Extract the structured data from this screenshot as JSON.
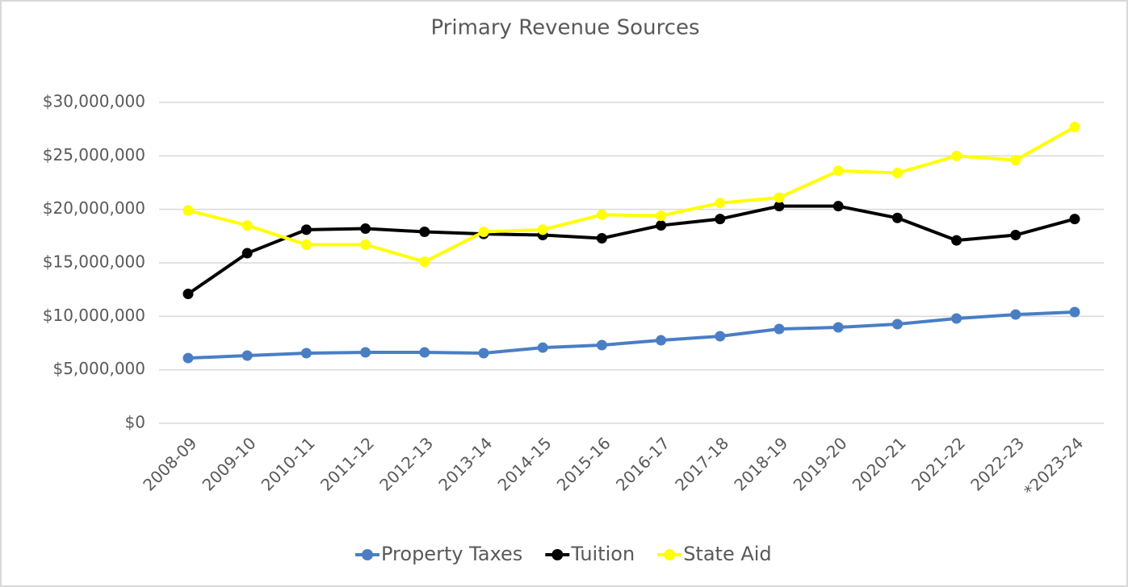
{
  "chart_data": {
    "type": "line",
    "title": "Primary Revenue Sources",
    "categories": [
      "2008-09",
      "2009-10",
      "2010-11",
      "2011-12",
      "2012-13",
      "2013-14",
      "2014-15",
      "2015-16",
      "2016-17",
      "2017-18",
      "2018-19",
      "2019-20",
      "2020-21",
      "2021-22",
      "2022-23",
      "*2023-24"
    ],
    "series": [
      {
        "name": "Property Taxes",
        "color": "#4a7ec4",
        "values": [
          6100000,
          6330000,
          6560000,
          6630000,
          6630000,
          6560000,
          7080000,
          7310000,
          7760000,
          8140000,
          8820000,
          8970000,
          9270000,
          9800000,
          10170000,
          10400000
        ]
      },
      {
        "name": "Tuition",
        "color": "#000000",
        "values": [
          12100000,
          15900000,
          18100000,
          18200000,
          17900000,
          17700000,
          17600000,
          17300000,
          18500000,
          19100000,
          20300000,
          20300000,
          19200000,
          17100000,
          17600000,
          19100000
        ]
      },
      {
        "name": "State Aid",
        "color": "#ffff00",
        "values": [
          19900000,
          18500000,
          16700000,
          16700000,
          15100000,
          17900000,
          18100000,
          19500000,
          19400000,
          20600000,
          21100000,
          23600000,
          23400000,
          25000000,
          24600000,
          27700000
        ]
      }
    ],
    "ylim": [
      0,
      30000000
    ],
    "yticks": [
      {
        "value": 0,
        "label": "$0"
      },
      {
        "value": 5000000,
        "label": "$5,000,000"
      },
      {
        "value": 10000000,
        "label": "$10,000,000"
      },
      {
        "value": 15000000,
        "label": "$15,000,000"
      },
      {
        "value": 20000000,
        "label": "$20,000,000"
      },
      {
        "value": 25000000,
        "label": "$25,000,000"
      },
      {
        "value": 30000000,
        "label": "$30,000,000"
      }
    ],
    "grid": true,
    "legend": "bottom"
  }
}
